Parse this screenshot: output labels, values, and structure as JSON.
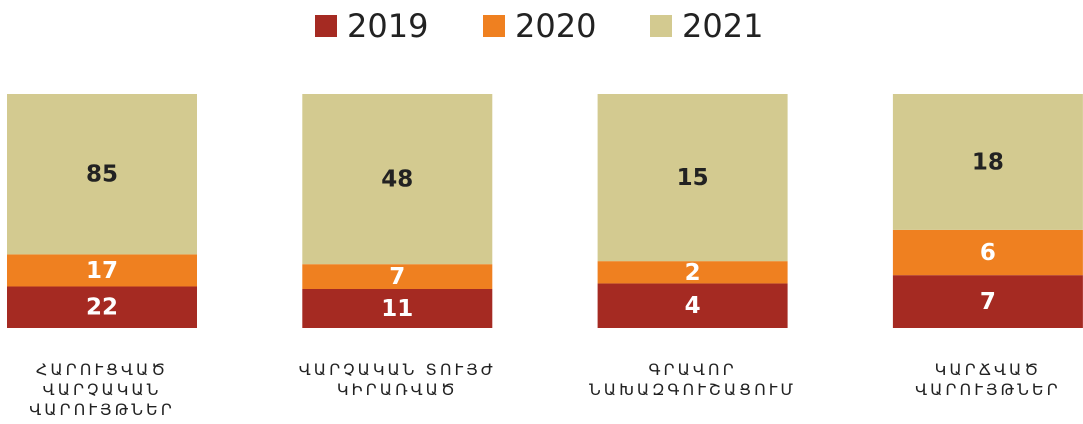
{
  "chart_data": {
    "type": "bar",
    "stacking": "percent",
    "categories": [
      "ՀԱՐՈՒՑՎԱԾ ՎԱՐՉԱԿԱՆ ՎԱՐՈՒՅԹՆԵՐ",
      "ՎԱՐՉԱԿԱՆ ՏՈՒՅԺ ԿԻՐԱՌՎԱԾ",
      "ԳՐԱՎՈՐ ՆԱԽԱԶԳՈՒՇԱՑՈՒՄ",
      "ԿԱՐՃՎԱԾ ՎԱՐՈՒՅԹՆԵՐ"
    ],
    "series": [
      {
        "name": "2019",
        "color": "#a52a22",
        "label_color": "#ffffff",
        "values": [
          22,
          11,
          4,
          7
        ]
      },
      {
        "name": "2020",
        "color": "#ef8020",
        "label_color": "#ffffff",
        "values": [
          17,
          7,
          2,
          6
        ]
      },
      {
        "name": "2021",
        "color": "#d3ca90",
        "label_color": "#222222",
        "values": [
          85,
          48,
          15,
          18
        ]
      }
    ],
    "legend": "top"
  }
}
